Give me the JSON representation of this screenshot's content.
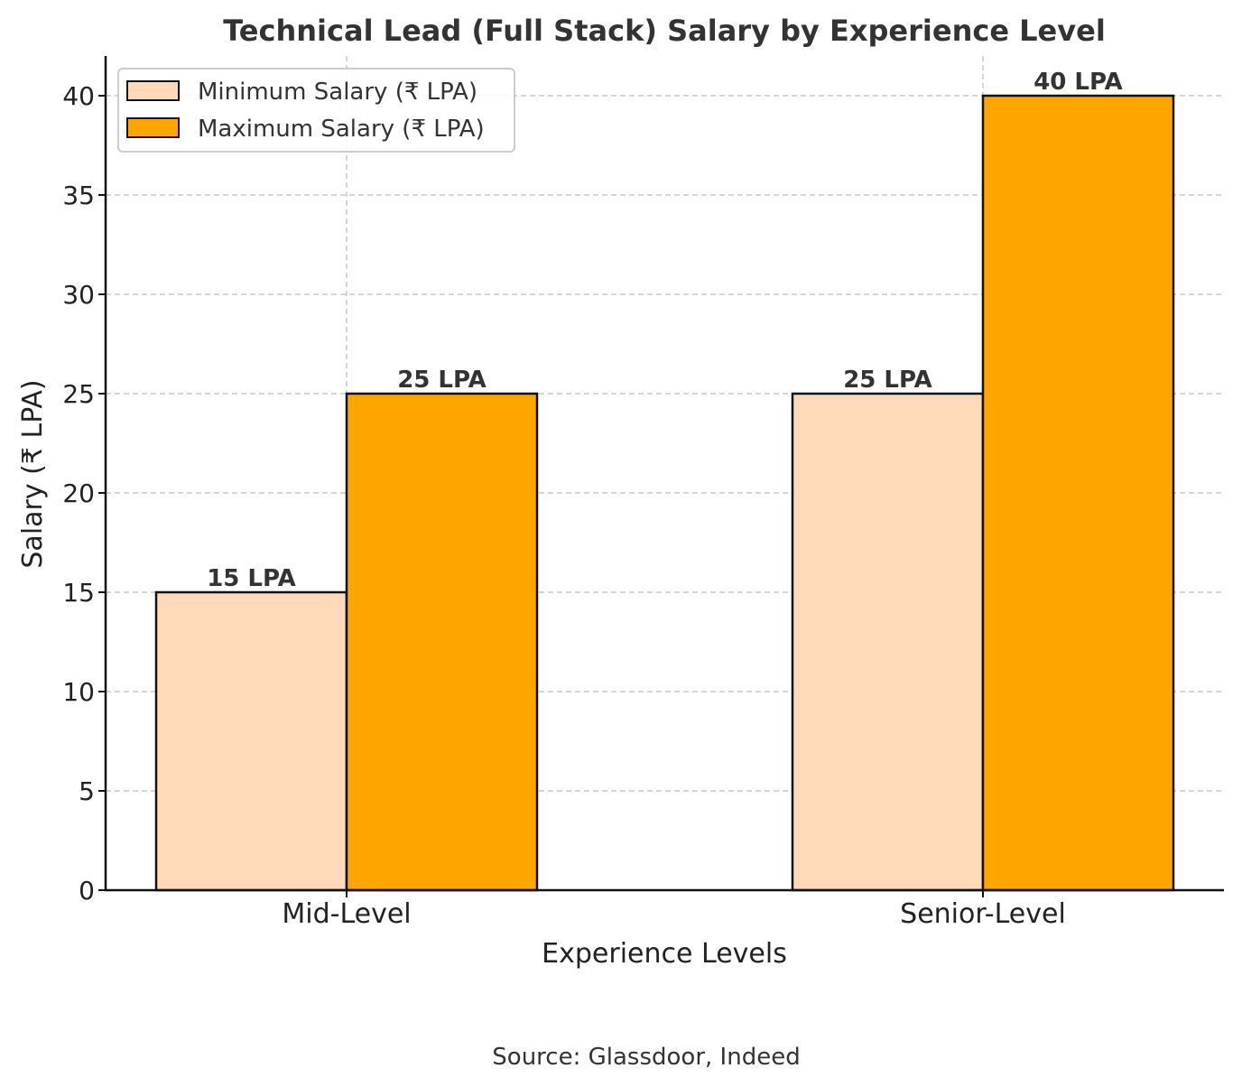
{
  "chart_data": {
    "type": "bar",
    "title": "Technical Lead (Full Stack) Salary by Experience Level",
    "xlabel": "Experience Levels",
    "ylabel": "Salary (₹ LPA)",
    "categories": [
      "Mid-Level",
      "Senior-Level"
    ],
    "series": [
      {
        "name": "Minimum Salary (₹ LPA)",
        "values": [
          15,
          25
        ],
        "labels": [
          "15 LPA",
          "25 LPA"
        ],
        "color": "#ffdab9"
      },
      {
        "name": "Maximum Salary (₹ LPA)",
        "values": [
          25,
          40
        ],
        "labels": [
          "25 LPA",
          "40 LPA"
        ],
        "color": "#ffa500"
      }
    ],
    "ylim": [
      0,
      42
    ],
    "yticks": [
      "0",
      "5",
      "10",
      "15",
      "20",
      "25",
      "30",
      "35",
      "40"
    ],
    "grid": true,
    "legend": "top-left",
    "source": "Source: Glassdoor, Indeed"
  }
}
